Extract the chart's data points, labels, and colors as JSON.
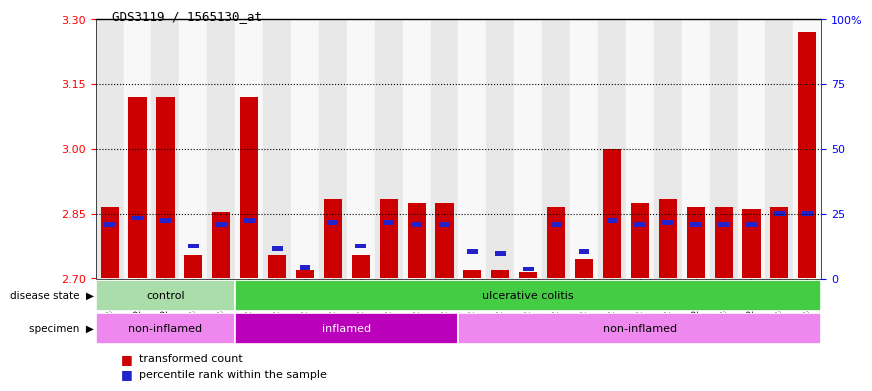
{
  "title": "GDS3119 / 1565130_at",
  "samples": [
    "GSM240023",
    "GSM240024",
    "GSM240025",
    "GSM240026",
    "GSM240027",
    "GSM239617",
    "GSM239618",
    "GSM239714",
    "GSM239716",
    "GSM239717",
    "GSM239718",
    "GSM239719",
    "GSM239720",
    "GSM239723",
    "GSM239725",
    "GSM239726",
    "GSM239727",
    "GSM239729",
    "GSM239730",
    "GSM239731",
    "GSM239732",
    "GSM240022",
    "GSM240028",
    "GSM240029",
    "GSM240030",
    "GSM240031"
  ],
  "red_values": [
    2.865,
    3.12,
    3.12,
    2.755,
    2.855,
    3.12,
    2.755,
    2.72,
    2.885,
    2.755,
    2.885,
    2.875,
    2.875,
    2.72,
    2.72,
    2.715,
    2.865,
    2.745,
    3.0,
    2.875,
    2.885,
    2.865,
    2.865,
    2.86,
    2.865,
    3.27
  ],
  "blue_values": [
    2.825,
    2.84,
    2.835,
    2.775,
    2.825,
    2.835,
    2.77,
    2.725,
    2.83,
    2.775,
    2.83,
    2.825,
    2.825,
    2.762,
    2.757,
    2.722,
    2.825,
    2.762,
    2.835,
    2.825,
    2.83,
    2.825,
    2.825,
    2.825,
    2.85,
    2.85
  ],
  "ylim_left": [
    2.7,
    3.3
  ],
  "ylim_right": [
    0,
    100
  ],
  "yticks_left": [
    2.7,
    2.85,
    3.0,
    3.15,
    3.3
  ],
  "yticks_right": [
    0,
    25,
    50,
    75,
    100
  ],
  "ytick_labels_right": [
    "0",
    "25",
    "50",
    "75",
    "100%"
  ],
  "hlines": [
    2.85,
    3.0,
    3.15
  ],
  "bar_color": "#CC0000",
  "blue_color": "#2222CC",
  "baseline": 2.7,
  "disease_state_groups": [
    {
      "label": "control",
      "start": 0,
      "end": 5,
      "color": "#AADDAA"
    },
    {
      "label": "ulcerative colitis",
      "start": 5,
      "end": 26,
      "color": "#44CC44"
    }
  ],
  "specimen_groups": [
    {
      "label": "non-inflamed",
      "start": 0,
      "end": 5,
      "color": "#EE88EE"
    },
    {
      "label": "inflamed",
      "start": 5,
      "end": 13,
      "color": "#BB00BB"
    },
    {
      "label": "non-inflamed",
      "start": 13,
      "end": 26,
      "color": "#EE88EE"
    }
  ],
  "legend_items": [
    {
      "label": "transformed count",
      "color": "#CC0000"
    },
    {
      "label": "percentile rank within the sample",
      "color": "#2222CC"
    }
  ],
  "bg_color_even": "#E8E8E8",
  "bg_color_odd": "#F8F8F8",
  "plot_bg": "#FFFFFF"
}
